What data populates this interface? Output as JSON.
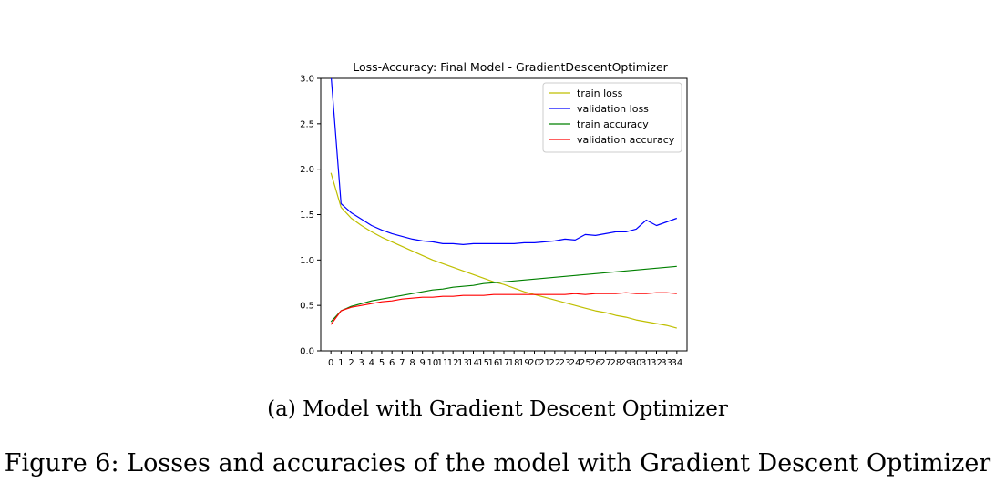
{
  "chart_data": {
    "type": "line",
    "title": "Loss-Accuracy: Final Model - GradientDescentOptimizer",
    "xlabel": "",
    "ylabel": "",
    "xlim": [
      -1,
      35
    ],
    "ylim": [
      0,
      3.0
    ],
    "yticks": [
      "0.0",
      "0.5",
      "1.0",
      "1.5",
      "2.0",
      "2.5",
      "3.0"
    ],
    "x": [
      0,
      1,
      2,
      3,
      4,
      5,
      6,
      7,
      8,
      9,
      10,
      11,
      12,
      13,
      14,
      15,
      16,
      17,
      18,
      19,
      20,
      21,
      22,
      23,
      24,
      25,
      26,
      27,
      28,
      29,
      30,
      31,
      32,
      33,
      34
    ],
    "legend_position": "top-right",
    "series": [
      {
        "name": "train loss",
        "color": "#bfbf00",
        "values": [
          1.96,
          1.58,
          1.46,
          1.38,
          1.31,
          1.25,
          1.2,
          1.15,
          1.1,
          1.05,
          1.0,
          0.96,
          0.92,
          0.88,
          0.84,
          0.8,
          0.76,
          0.73,
          0.69,
          0.65,
          0.62,
          0.59,
          0.56,
          0.53,
          0.5,
          0.47,
          0.44,
          0.42,
          0.39,
          0.37,
          0.34,
          0.32,
          0.3,
          0.28,
          0.25
        ]
      },
      {
        "name": "validation loss",
        "color": "#0000ff",
        "values": [
          3.05,
          1.62,
          1.52,
          1.45,
          1.38,
          1.33,
          1.29,
          1.26,
          1.23,
          1.21,
          1.2,
          1.18,
          1.18,
          1.17,
          1.18,
          1.18,
          1.18,
          1.18,
          1.18,
          1.19,
          1.19,
          1.2,
          1.21,
          1.23,
          1.22,
          1.28,
          1.27,
          1.29,
          1.31,
          1.31,
          1.34,
          1.44,
          1.38,
          1.42,
          1.46
        ]
      },
      {
        "name": "train accuracy",
        "color": "#008000",
        "values": [
          0.32,
          0.44,
          0.49,
          0.52,
          0.55,
          0.57,
          0.59,
          0.61,
          0.63,
          0.65,
          0.67,
          0.68,
          0.7,
          0.71,
          0.72,
          0.74,
          0.75,
          0.76,
          0.77,
          0.78,
          0.79,
          0.8,
          0.81,
          0.82,
          0.83,
          0.84,
          0.85,
          0.86,
          0.87,
          0.88,
          0.89,
          0.9,
          0.91,
          0.92,
          0.93
        ]
      },
      {
        "name": "validation accuracy",
        "color": "#ff0000",
        "values": [
          0.29,
          0.44,
          0.48,
          0.5,
          0.52,
          0.54,
          0.55,
          0.57,
          0.58,
          0.59,
          0.59,
          0.6,
          0.6,
          0.61,
          0.61,
          0.61,
          0.62,
          0.62,
          0.62,
          0.62,
          0.62,
          0.62,
          0.62,
          0.62,
          0.63,
          0.62,
          0.63,
          0.63,
          0.63,
          0.64,
          0.63,
          0.63,
          0.64,
          0.64,
          0.63
        ]
      }
    ]
  },
  "subcaption": "(a) Model with Gradient Descent Optimizer",
  "caption": "Figure 6: Losses and accuracies of the model with Gradient Descent Optimizer"
}
